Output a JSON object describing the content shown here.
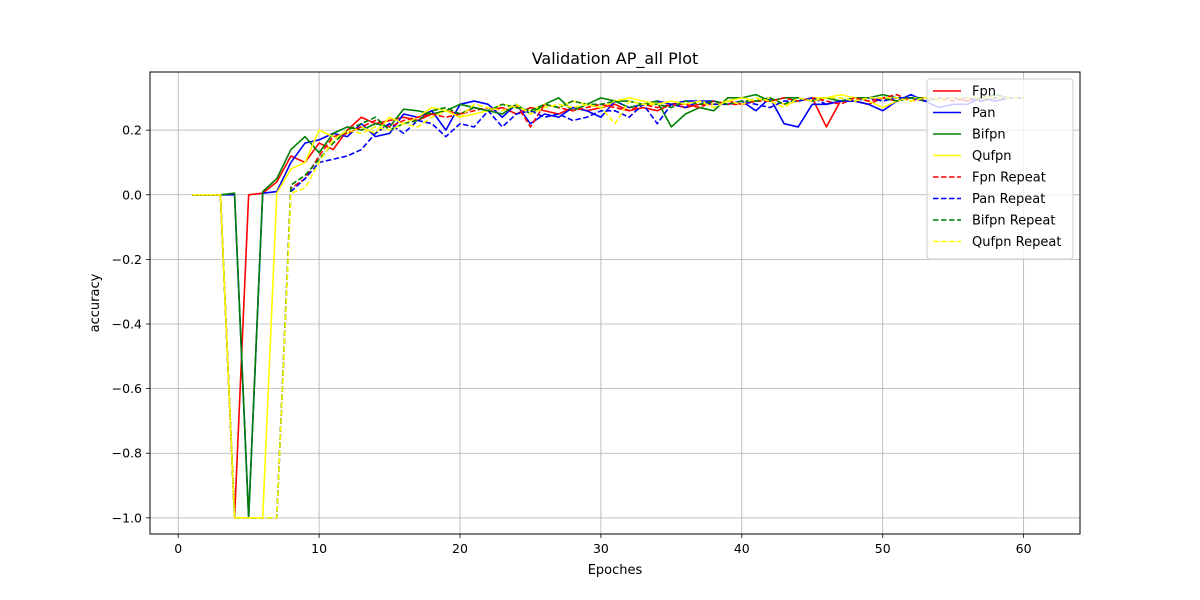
{
  "chart_data": {
    "type": "line",
    "title": "Validation AP_all Plot",
    "xlabel": "Epoches",
    "ylabel": "accuracy",
    "xlim": [
      -2,
      64
    ],
    "ylim": [
      -1.05,
      0.38
    ],
    "xticks": [
      0,
      10,
      20,
      30,
      40,
      50,
      60
    ],
    "yticks": [
      -1.0,
      -0.8,
      -0.6,
      -0.4,
      -0.2,
      0.0,
      0.2
    ],
    "ytick_labels": [
      "−1.0",
      "−0.8",
      "−0.6",
      "−0.4",
      "−0.2",
      "0.0",
      "0.2"
    ],
    "grid": true,
    "legend_position": "top-right",
    "x_start": 1,
    "series": [
      {
        "name": "Fpn",
        "color": "#ff0000",
        "style": "solid",
        "values": [
          0,
          0,
          0,
          -1,
          0,
          0.005,
          0.04,
          0.12,
          0.1,
          0.16,
          0.14,
          0.2,
          0.24,
          0.22,
          0.23,
          0.24,
          0.23,
          0.25,
          0.26,
          0.25,
          0.27,
          0.26,
          0.27,
          0.25,
          0.27,
          0.26,
          0.25,
          0.27,
          0.26,
          0.27,
          0.28,
          0.26,
          0.27,
          0.26,
          0.28,
          0.27,
          0.28,
          0.28,
          0.29,
          0.28,
          0.29,
          0.3,
          0.28,
          0.29,
          0.3,
          0.21,
          0.29,
          0.29,
          0.28,
          0.3,
          0.29,
          0.3,
          0.29,
          0.3,
          0.3,
          0.29,
          0.3,
          0.3,
          0.3,
          0.3
        ]
      },
      {
        "name": "Pan",
        "color": "#0000ff",
        "style": "solid",
        "values": [
          0,
          0,
          0,
          0,
          -1,
          0.005,
          0.01,
          0.1,
          0.16,
          0.17,
          0.19,
          0.18,
          0.22,
          0.18,
          0.19,
          0.25,
          0.24,
          0.26,
          0.2,
          0.28,
          0.29,
          0.28,
          0.24,
          0.28,
          0.22,
          0.25,
          0.24,
          0.27,
          0.26,
          0.24,
          0.29,
          0.27,
          0.28,
          0.29,
          0.28,
          0.29,
          0.29,
          0.29,
          0.28,
          0.29,
          0.26,
          0.3,
          0.22,
          0.21,
          0.28,
          0.28,
          0.29,
          0.29,
          0.28,
          0.26,
          0.29,
          0.31,
          0.29,
          0.27,
          0.28,
          0.28,
          0.3,
          0.29,
          0.3,
          0.3
        ]
      },
      {
        "name": "Bifpn",
        "color": "#008000",
        "style": "solid",
        "values": [
          0,
          0,
          0,
          0.005,
          -1,
          0.01,
          0.05,
          0.14,
          0.18,
          0.13,
          0.19,
          0.21,
          0.2,
          0.22,
          0.21,
          0.265,
          0.26,
          0.25,
          0.26,
          0.28,
          0.27,
          0.26,
          0.25,
          0.28,
          0.25,
          0.28,
          0.3,
          0.26,
          0.28,
          0.3,
          0.29,
          0.29,
          0.28,
          0.29,
          0.21,
          0.25,
          0.27,
          0.26,
          0.3,
          0.3,
          0.31,
          0.29,
          0.3,
          0.3,
          0.29,
          0.3,
          0.29,
          0.3,
          0.3,
          0.31,
          0.3,
          0.3,
          0.29,
          0.3,
          0.3,
          0.3,
          0.29,
          0.3,
          0.3,
          0.3
        ]
      },
      {
        "name": "Qufpn",
        "color": "#ffff00",
        "style": "solid",
        "values": [
          0,
          0,
          0,
          -1,
          -1,
          -1,
          0.005,
          0.08,
          0.1,
          0.2,
          0.18,
          0.19,
          0.21,
          0.19,
          0.24,
          0.22,
          0.24,
          0.27,
          0.26,
          0.24,
          0.25,
          0.26,
          0.28,
          0.27,
          0.26,
          0.28,
          0.27,
          0.29,
          0.28,
          0.27,
          0.29,
          0.3,
          0.29,
          0.28,
          0.29,
          0.28,
          0.29,
          0.28,
          0.29,
          0.3,
          0.29,
          0.3,
          0.28,
          0.29,
          0.3,
          0.3,
          0.31,
          0.3,
          0.29,
          0.27,
          0.29,
          0.3,
          0.3,
          0.29,
          0.3,
          0.3,
          0.3,
          0.3,
          0.3,
          0.3
        ]
      },
      {
        "name": "Fpn Repeat",
        "color": "#ff0000",
        "style": "dashed",
        "values": [
          0,
          0,
          0,
          -1,
          -1,
          -1,
          -1,
          0.02,
          0.05,
          0.12,
          0.18,
          0.19,
          0.21,
          0.23,
          0.21,
          0.23,
          0.24,
          0.25,
          0.24,
          0.25,
          0.26,
          0.27,
          0.26,
          0.28,
          0.21,
          0.28,
          0.27,
          0.26,
          0.27,
          0.28,
          0.27,
          0.26,
          0.28,
          0.27,
          0.28,
          0.28,
          0.27,
          0.29,
          0.28,
          0.28,
          0.29,
          0.29,
          0.3,
          0.29,
          0.3,
          0.29,
          0.28,
          0.3,
          0.29,
          0.3,
          0.31,
          0.29,
          0.3,
          0.3,
          0.29,
          0.3,
          0.3,
          0.3,
          0.3,
          0.3
        ]
      },
      {
        "name": "Pan Repeat",
        "color": "#0000ff",
        "style": "dashed",
        "values": [
          0,
          0,
          0,
          -1,
          -1,
          -1,
          -1,
          0.01,
          0.05,
          0.1,
          0.11,
          0.12,
          0.14,
          0.19,
          0.22,
          0.19,
          0.23,
          0.22,
          0.18,
          0.22,
          0.21,
          0.26,
          0.21,
          0.25,
          0.26,
          0.24,
          0.25,
          0.23,
          0.24,
          0.26,
          0.26,
          0.24,
          0.28,
          0.22,
          0.28,
          0.27,
          0.29,
          0.28,
          0.28,
          0.29,
          0.28,
          0.27,
          0.29,
          0.29,
          0.3,
          0.28,
          0.29,
          0.29,
          0.3,
          0.29,
          0.3,
          0.3,
          0.29,
          0.3,
          0.3,
          0.3,
          0.29,
          0.3,
          0.3,
          0.3
        ]
      },
      {
        "name": "Bifpn Repeat",
        "color": "#008000",
        "style": "dashed",
        "values": [
          0,
          0,
          0,
          -1,
          -1,
          -1,
          -1,
          0.03,
          0.06,
          0.11,
          0.16,
          0.2,
          0.22,
          0.24,
          0.2,
          0.22,
          0.23,
          0.26,
          0.27,
          0.25,
          0.27,
          0.26,
          0.28,
          0.27,
          0.26,
          0.28,
          0.27,
          0.29,
          0.28,
          0.28,
          0.29,
          0.27,
          0.28,
          0.28,
          0.27,
          0.29,
          0.28,
          0.29,
          0.28,
          0.29,
          0.29,
          0.3,
          0.28,
          0.3,
          0.29,
          0.3,
          0.3,
          0.29,
          0.3,
          0.3,
          0.29,
          0.3,
          0.3,
          0.3,
          0.3,
          0.3,
          0.3,
          0.31,
          0.3,
          0.3
        ]
      },
      {
        "name": "Qufpn Repeat",
        "color": "#ffff00",
        "style": "dashed",
        "values": [
          0,
          0,
          0,
          -1,
          -1,
          -1,
          -1,
          0.005,
          0.02,
          0.1,
          0.17,
          0.2,
          0.19,
          0.21,
          0.2,
          0.22,
          0.21,
          0.24,
          0.26,
          0.24,
          0.28,
          0.27,
          0.26,
          0.28,
          0.25,
          0.27,
          0.28,
          0.27,
          0.28,
          0.27,
          0.22,
          0.29,
          0.28,
          0.28,
          0.29,
          0.28,
          0.29,
          0.27,
          0.29,
          0.28,
          0.3,
          0.29,
          0.27,
          0.3,
          0.29,
          0.3,
          0.3,
          0.29,
          0.3,
          0.3,
          0.3,
          0.29,
          0.3,
          0.3,
          0.3,
          0.3,
          0.3,
          0.3,
          0.3,
          0.3
        ]
      }
    ]
  }
}
